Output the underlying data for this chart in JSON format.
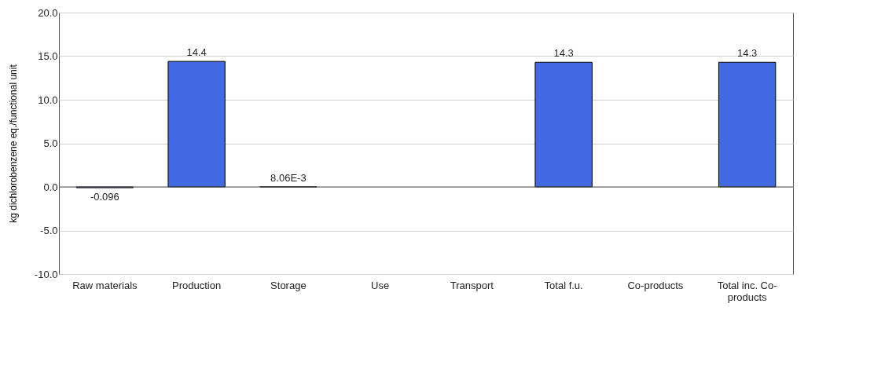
{
  "chart_data": {
    "type": "bar",
    "ylabel": "kg dichlorobenzene eq./functional unit",
    "categories": [
      "Raw materials",
      "Production",
      "Storage",
      "Use",
      "Transport",
      "Total f.u.",
      "Co-products",
      "Total inc. Co-products"
    ],
    "values": [
      -0.096,
      14.4,
      0.00806,
      null,
      null,
      14.3,
      null,
      14.3
    ],
    "value_labels": [
      "-0.096",
      "14.4",
      "8.06E-3",
      null,
      null,
      "14.3",
      null,
      "14.3"
    ],
    "color": "#4169e1",
    "ylim": [
      -10,
      20
    ],
    "yticks": [
      {
        "value": -10,
        "label": "-10.0"
      },
      {
        "value": -5,
        "label": "-5.0"
      },
      {
        "value": 0,
        "label": "0.0"
      },
      {
        "value": 5,
        "label": "5.0"
      },
      {
        "value": 10,
        "label": "10.0"
      },
      {
        "value": 15,
        "label": "15.0"
      },
      {
        "value": 20,
        "label": "20.0"
      }
    ],
    "grid": "y"
  }
}
